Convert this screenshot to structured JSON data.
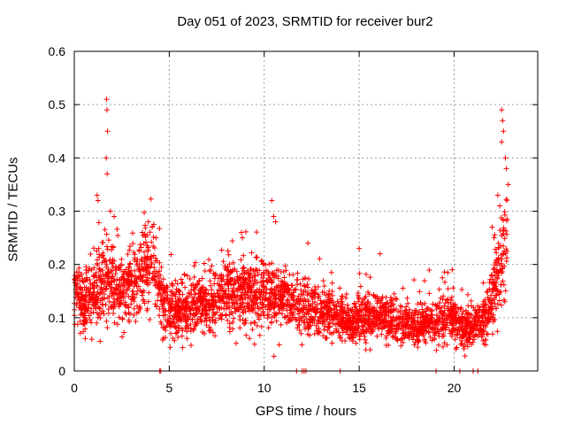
{
  "chart_data": {
    "type": "scatter",
    "title": "Day 051 of 2023, SRMTID for receiver bur2",
    "xlabel": "GPS time / hours",
    "ylabel": "SRMTID / TECUs",
    "xlim": [
      0,
      24.4
    ],
    "ylim": [
      0,
      0.6
    ],
    "x_ticks": [
      0,
      5,
      10,
      15,
      20
    ],
    "x_tick_labels": [
      "0",
      "5",
      "10",
      "15",
      "20"
    ],
    "y_ticks": [
      0,
      0.1,
      0.2,
      0.3,
      0.4,
      0.5,
      0.6
    ],
    "y_tick_labels": [
      "0",
      "0.1",
      "0.2",
      "0.3",
      "0.4",
      "0.5",
      "0.6"
    ],
    "grid": true,
    "marker": "+",
    "series_color": "#ff0000",
    "trend_points": [
      [
        0.0,
        0.14
      ],
      [
        0.5,
        0.13
      ],
      [
        1.0,
        0.14
      ],
      [
        1.3,
        0.16
      ],
      [
        1.7,
        0.17
      ],
      [
        2.0,
        0.16
      ],
      [
        2.5,
        0.16
      ],
      [
        3.0,
        0.17
      ],
      [
        3.5,
        0.18
      ],
      [
        4.0,
        0.2
      ],
      [
        4.4,
        0.17
      ],
      [
        4.6,
        0.12
      ],
      [
        5.0,
        0.11
      ],
      [
        5.5,
        0.11
      ],
      [
        6.0,
        0.12
      ],
      [
        6.5,
        0.13
      ],
      [
        7.0,
        0.13
      ],
      [
        7.5,
        0.14
      ],
      [
        8.0,
        0.14
      ],
      [
        8.5,
        0.15
      ],
      [
        9.0,
        0.15
      ],
      [
        9.5,
        0.15
      ],
      [
        10.0,
        0.15
      ],
      [
        10.5,
        0.14
      ],
      [
        11.0,
        0.14
      ],
      [
        11.5,
        0.13
      ],
      [
        12.0,
        0.12
      ],
      [
        12.5,
        0.12
      ],
      [
        13.0,
        0.11
      ],
      [
        13.5,
        0.11
      ],
      [
        14.0,
        0.1
      ],
      [
        14.5,
        0.09
      ],
      [
        15.0,
        0.1
      ],
      [
        15.5,
        0.1
      ],
      [
        16.0,
        0.1
      ],
      [
        16.5,
        0.1
      ],
      [
        17.0,
        0.09
      ],
      [
        17.5,
        0.09
      ],
      [
        18.0,
        0.085
      ],
      [
        18.5,
        0.09
      ],
      [
        19.0,
        0.09
      ],
      [
        19.5,
        0.1
      ],
      [
        20.0,
        0.1
      ],
      [
        20.5,
        0.08
      ],
      [
        21.0,
        0.08
      ],
      [
        21.5,
        0.09
      ],
      [
        22.0,
        0.13
      ],
      [
        22.4,
        0.2
      ],
      [
        22.8,
        0.26
      ]
    ],
    "spikes": [
      {
        "x": 1.7,
        "y": 0.51
      },
      {
        "x": 1.72,
        "y": 0.49
      },
      {
        "x": 1.75,
        "y": 0.45
      },
      {
        "x": 1.68,
        "y": 0.4
      },
      {
        "x": 1.73,
        "y": 0.37
      },
      {
        "x": 1.2,
        "y": 0.33
      },
      {
        "x": 1.25,
        "y": 0.32
      },
      {
        "x": 1.9,
        "y": 0.3
      },
      {
        "x": 2.1,
        "y": 0.29
      },
      {
        "x": 3.9,
        "y": 0.28
      },
      {
        "x": 4.1,
        "y": 0.27
      },
      {
        "x": 4.3,
        "y": 0.25
      },
      {
        "x": 8.8,
        "y": 0.26
      },
      {
        "x": 8.85,
        "y": 0.25
      },
      {
        "x": 10.4,
        "y": 0.32
      },
      {
        "x": 10.5,
        "y": 0.29
      },
      {
        "x": 10.6,
        "y": 0.28
      },
      {
        "x": 12.3,
        "y": 0.24
      },
      {
        "x": 15.0,
        "y": 0.23
      },
      {
        "x": 16.1,
        "y": 0.22
      },
      {
        "x": 19.9,
        "y": 0.19
      },
      {
        "x": 22.5,
        "y": 0.49
      },
      {
        "x": 22.55,
        "y": 0.47
      },
      {
        "x": 22.6,
        "y": 0.45
      },
      {
        "x": 22.5,
        "y": 0.43
      },
      {
        "x": 22.7,
        "y": 0.4
      },
      {
        "x": 22.75,
        "y": 0.38
      },
      {
        "x": 22.3,
        "y": 0.33
      },
      {
        "x": 22.4,
        "y": 0.31
      },
      {
        "x": 22.0,
        "y": 0.27
      },
      {
        "x": 22.1,
        "y": 0.25
      },
      {
        "x": 22.85,
        "y": 0.35
      }
    ],
    "zero_points": [
      4.5,
      4.55,
      11.7,
      12.0,
      12.1,
      12.2,
      14.0,
      19.05,
      20.3,
      21.0,
      21.25
    ],
    "noise_seed": 51,
    "point_count": 3200
  }
}
